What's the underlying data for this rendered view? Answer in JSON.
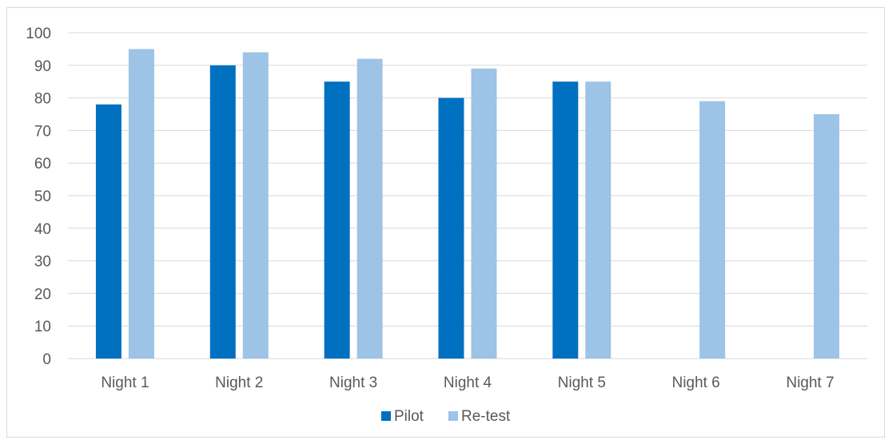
{
  "chart_data": {
    "type": "bar",
    "title": "",
    "xlabel": "",
    "ylabel": "",
    "categories": [
      "Night 1",
      "Night 2",
      "Night 3",
      "Night 4",
      "Night 5",
      "Night 6",
      "Night 7"
    ],
    "series": [
      {
        "name": "Pilot",
        "color": "#0070c0",
        "values": [
          78,
          90,
          85,
          80,
          85,
          null,
          null
        ]
      },
      {
        "name": "Re-test",
        "color": "#9dc3e6",
        "values": [
          95,
          94,
          92,
          89,
          85,
          79,
          75
        ]
      }
    ],
    "ylim": [
      0,
      100
    ],
    "yticks": [
      0,
      10,
      20,
      30,
      40,
      50,
      60,
      70,
      80,
      90,
      100
    ],
    "grid": true,
    "legend_position": "bottom",
    "colors": {
      "gridline": "#d9d9d9",
      "axis_text": "#595959"
    }
  }
}
